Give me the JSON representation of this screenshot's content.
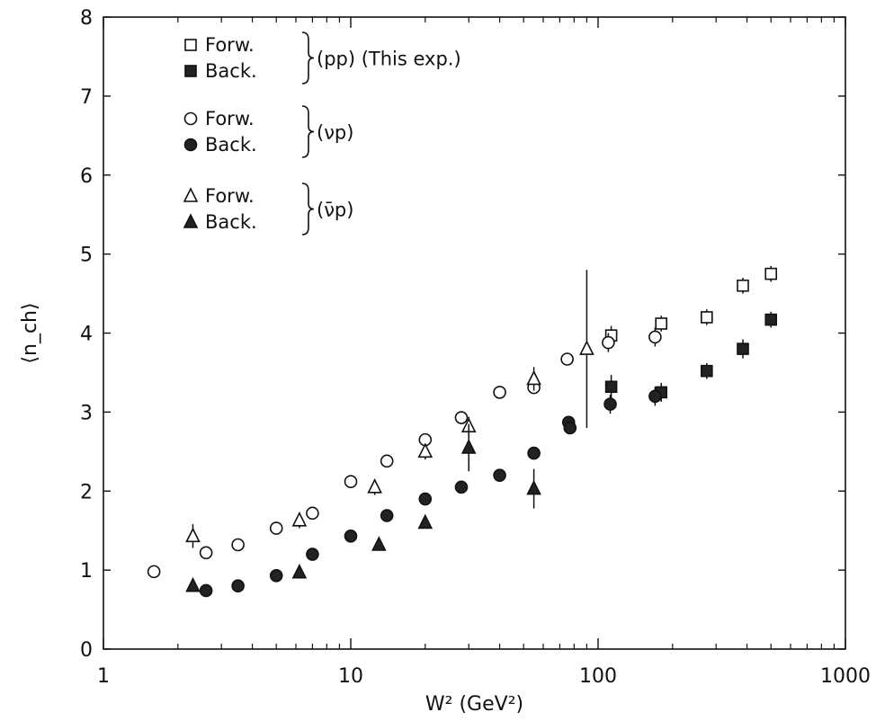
{
  "chart_data": {
    "type": "scatter",
    "xscale": "log",
    "xlim": [
      1,
      1000
    ],
    "ylim": [
      0,
      8
    ],
    "xlabel": "W² (GeV²)",
    "ylabel": "⟨n_ch⟩",
    "xticks": [
      "1",
      "10",
      "100",
      "1000"
    ],
    "yticks": [
      "0",
      "1",
      "2",
      "3",
      "4",
      "5",
      "6",
      "7",
      "8"
    ],
    "grid": false,
    "legend_position": "top-left",
    "legend": {
      "groups": [
        {
          "entries": [
            "Forw.",
            "Back."
          ],
          "label": "(pp)  (This exp.)"
        },
        {
          "entries": [
            "Forw.",
            "Back."
          ],
          "label": "(νp)"
        },
        {
          "entries": [
            "Forw.",
            "Back."
          ],
          "label": "(ν̄p)"
        }
      ]
    },
    "series": [
      {
        "group": 0,
        "marker": "square",
        "filled": false,
        "points": [
          [
            113,
            3.97,
            0.12
          ],
          [
            180,
            4.12,
            0.1
          ],
          [
            275,
            4.2,
            0.1
          ],
          [
            385,
            4.6,
            0.1
          ],
          [
            500,
            4.75,
            0.1
          ]
        ]
      },
      {
        "group": 0,
        "marker": "square",
        "filled": true,
        "points": [
          [
            113,
            3.32,
            0.15
          ],
          [
            180,
            3.25,
            0.12
          ],
          [
            275,
            3.52,
            0.1
          ],
          [
            385,
            3.8,
            0.12
          ],
          [
            500,
            4.17,
            0.1
          ]
        ]
      },
      {
        "group": 1,
        "marker": "circle",
        "filled": false,
        "points": [
          [
            1.6,
            0.98,
            0
          ],
          [
            2.6,
            1.22,
            0
          ],
          [
            3.5,
            1.32,
            0
          ],
          [
            5,
            1.53,
            0
          ],
          [
            7,
            1.72,
            0
          ],
          [
            10,
            2.12,
            0
          ],
          [
            14,
            2.38,
            0
          ],
          [
            20,
            2.65,
            0
          ],
          [
            28,
            2.93,
            0
          ],
          [
            40,
            3.25,
            0
          ],
          [
            55,
            3.31,
            0
          ],
          [
            75,
            3.67,
            0
          ],
          [
            110,
            3.88,
            0.12
          ],
          [
            170,
            3.95,
            0.12
          ]
        ]
      },
      {
        "group": 1,
        "marker": "circle",
        "filled": true,
        "points": [
          [
            2.6,
            0.74,
            0
          ],
          [
            3.5,
            0.8,
            0
          ],
          [
            5,
            0.93,
            0
          ],
          [
            7,
            1.2,
            0
          ],
          [
            10,
            1.43,
            0
          ],
          [
            14,
            1.69,
            0
          ],
          [
            20,
            1.9,
            0
          ],
          [
            28,
            2.05,
            0
          ],
          [
            40,
            2.2,
            0
          ],
          [
            55,
            2.48,
            0
          ],
          [
            76,
            2.87,
            0
          ],
          [
            77,
            2.8,
            0
          ],
          [
            112,
            3.1,
            0.12
          ],
          [
            170,
            3.2,
            0.12
          ]
        ]
      },
      {
        "group": 2,
        "marker": "triangle",
        "filled": false,
        "points": [
          [
            2.3,
            1.43,
            0.15
          ],
          [
            6.2,
            1.63,
            0.1
          ],
          [
            12.5,
            2.05,
            0.1
          ],
          [
            20,
            2.5,
            0.1
          ],
          [
            30,
            2.82,
            0.12
          ],
          [
            55,
            3.42,
            0.15
          ],
          [
            90,
            3.8,
            1.0
          ]
        ]
      },
      {
        "group": 2,
        "marker": "triangle",
        "filled": true,
        "points": [
          [
            2.3,
            0.8,
            0
          ],
          [
            6.2,
            0.97,
            0
          ],
          [
            13,
            1.32,
            0
          ],
          [
            20,
            1.6,
            0
          ],
          [
            30,
            2.55,
            0.3
          ],
          [
            55,
            2.03,
            0.25
          ]
        ]
      }
    ]
  }
}
